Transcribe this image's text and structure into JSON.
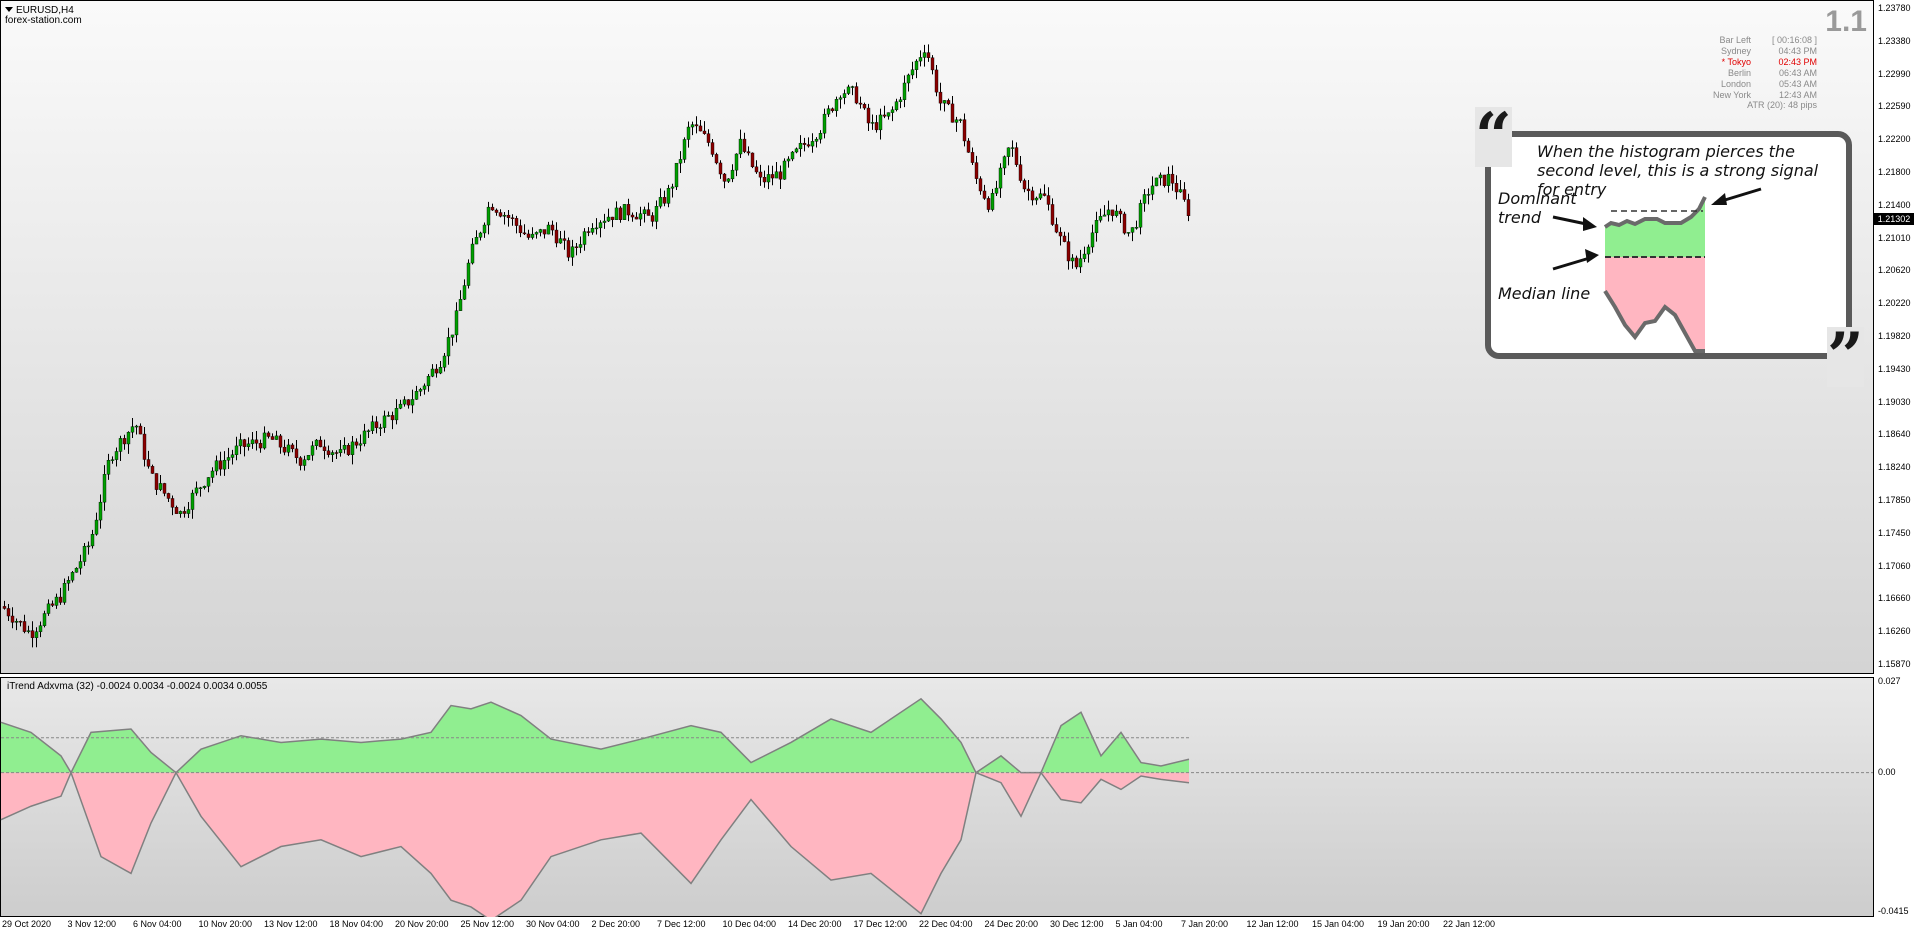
{
  "chart": {
    "symbol": "EURUSD,H4",
    "watermark": "forex-station.com",
    "version": "1.1",
    "current_price": "1.21302",
    "info": {
      "rows": [
        {
          "label": "Bar Left",
          "value": "[ 00:16:08 ]",
          "active": false
        },
        {
          "label": "Sydney",
          "value": "04:43 PM",
          "active": false
        },
        {
          "label": "* Tokyo",
          "value": "02:43 PM",
          "active": true
        },
        {
          "label": "Berlin",
          "value": "06:43 AM",
          "active": false
        },
        {
          "label": "London",
          "value": "05:43 AM",
          "active": false
        },
        {
          "label": "New York",
          "value": "12:43 AM",
          "active": false
        }
      ],
      "atr": "ATR (20): 48 pips"
    },
    "colors": {
      "bull": "#00a000",
      "bear": "#8b0000",
      "hist_up": "#90ee90",
      "hist_down": "#ffb6c1",
      "line": "#808080"
    }
  },
  "indicator": {
    "title": "iTrend Adxvma (32) -0.0024 0.0034 -0.0024 0.0034 0.0055"
  },
  "callout": {
    "text": "When the histogram pierces the second level, this is a strong signal for entry",
    "dominant": "Dominant trend",
    "median": "Median line",
    "open_quote": "“",
    "close_quote": "”"
  },
  "chart_data": {
    "type": "candlestick",
    "price_axis": [
      "1.23780",
      "1.23380",
      "1.22990",
      "1.22590",
      "1.22200",
      "1.21800",
      "1.21400",
      "1.21010",
      "1.20620",
      "1.20220",
      "1.19820",
      "1.19430",
      "1.19030",
      "1.18640",
      "1.18240",
      "1.17850",
      "1.17450",
      "1.17060",
      "1.16660",
      "1.16260",
      "1.15870"
    ],
    "indicator_axis": [
      "0.027",
      "0.00",
      "-0.0415"
    ],
    "time_axis": [
      "29 Oct 2020",
      "3 Nov 12:00",
      "6 Nov 04:00",
      "10 Nov 20:00",
      "13 Nov 12:00",
      "18 Nov 04:00",
      "20 Nov 20:00",
      "25 Nov 12:00",
      "30 Nov 04:00",
      "2 Dec 20:00",
      "7 Dec 12:00",
      "10 Dec 04:00",
      "14 Dec 20:00",
      "17 Dec 12:00",
      "22 Dec 04:00",
      "24 Dec 20:00",
      "30 Dec 12:00",
      "5 Jan 04:00",
      "7 Jan 20:00",
      "12 Jan 12:00",
      "15 Jan 04:00",
      "19 Jan 20:00",
      "22 Jan 12:00"
    ],
    "price_range": [
      1.1587,
      1.2378
    ],
    "indicator_range": [
      -0.0415,
      0.027
    ],
    "price_path": [
      [
        0,
        1.166
      ],
      [
        30,
        1.1625
      ],
      [
        60,
        1.167
      ],
      [
        90,
        1.1735
      ],
      [
        110,
        1.184
      ],
      [
        135,
        1.188
      ],
      [
        150,
        1.1815
      ],
      [
        180,
        1.177
      ],
      [
        210,
        1.182
      ],
      [
        240,
        1.185
      ],
      [
        270,
        1.186
      ],
      [
        300,
        1.1835
      ],
      [
        320,
        1.1855
      ],
      [
        340,
        1.184
      ],
      [
        360,
        1.186
      ],
      [
        380,
        1.188
      ],
      [
        400,
        1.1895
      ],
      [
        420,
        1.192
      ],
      [
        440,
        1.1955
      ],
      [
        455,
        1.2
      ],
      [
        470,
        1.208
      ],
      [
        490,
        1.2145
      ],
      [
        510,
        1.2125
      ],
      [
        530,
        1.21
      ],
      [
        550,
        1.2115
      ],
      [
        570,
        1.208
      ],
      [
        590,
        1.212
      ],
      [
        610,
        1.213
      ],
      [
        630,
        1.2135
      ],
      [
        650,
        1.2125
      ],
      [
        670,
        1.216
      ],
      [
        690,
        1.224
      ],
      [
        710,
        1.2215
      ],
      [
        725,
        1.217
      ],
      [
        740,
        1.2215
      ],
      [
        760,
        1.217
      ],
      [
        780,
        1.218
      ],
      [
        800,
        1.221
      ],
      [
        820,
        1.2235
      ],
      [
        840,
        1.228
      ],
      [
        855,
        1.2275
      ],
      [
        870,
        1.2235
      ],
      [
        890,
        1.225
      ],
      [
        910,
        1.23
      ],
      [
        925,
        1.2335
      ],
      [
        940,
        1.2265
      ],
      [
        960,
        1.224
      ],
      [
        975,
        1.2175
      ],
      [
        990,
        1.214
      ],
      [
        1010,
        1.2215
      ],
      [
        1025,
        1.216
      ],
      [
        1045,
        1.215
      ],
      [
        1060,
        1.21
      ],
      [
        1075,
        1.2065
      ],
      [
        1090,
        1.2105
      ],
      [
        1110,
        1.214
      ],
      [
        1130,
        1.2105
      ],
      [
        1150,
        1.2165
      ],
      [
        1170,
        1.2175
      ],
      [
        1188,
        1.2135
      ]
    ],
    "indicator_path": [
      [
        0,
        0.015
      ],
      [
        30,
        0.012
      ],
      [
        60,
        0.005
      ],
      [
        70,
        0.0
      ],
      [
        90,
        0.012
      ],
      [
        130,
        0.013
      ],
      [
        150,
        0.006
      ],
      [
        175,
        0.0
      ],
      [
        200,
        0.007
      ],
      [
        240,
        0.011
      ],
      [
        280,
        0.009
      ],
      [
        320,
        0.01
      ],
      [
        360,
        0.009
      ],
      [
        400,
        0.01
      ],
      [
        430,
        0.012
      ],
      [
        450,
        0.02
      ],
      [
        470,
        0.019
      ],
      [
        490,
        0.021
      ],
      [
        520,
        0.017
      ],
      [
        550,
        0.01
      ],
      [
        600,
        0.007
      ],
      [
        640,
        0.01
      ],
      [
        690,
        0.014
      ],
      [
        720,
        0.012
      ],
      [
        750,
        0.003
      ],
      [
        790,
        0.009
      ],
      [
        830,
        0.016
      ],
      [
        870,
        0.012
      ],
      [
        920,
        0.022
      ],
      [
        940,
        0.016
      ],
      [
        960,
        0.009
      ],
      [
        975,
        0.0
      ],
      [
        1000,
        0.005
      ],
      [
        1020,
        0.0
      ],
      [
        1040,
        0.0
      ],
      [
        1060,
        0.014
      ],
      [
        1080,
        0.018
      ],
      [
        1100,
        0.005
      ],
      [
        1120,
        0.012
      ],
      [
        1140,
        0.003
      ],
      [
        1160,
        0.002
      ],
      [
        1188,
        0.004
      ]
    ],
    "indicator_path_neg": [
      [
        0,
        -0.014
      ],
      [
        30,
        -0.01
      ],
      [
        60,
        -0.007
      ],
      [
        70,
        0.0
      ],
      [
        100,
        -0.025
      ],
      [
        130,
        -0.03
      ],
      [
        150,
        -0.015
      ],
      [
        175,
        0.0
      ],
      [
        200,
        -0.013
      ],
      [
        240,
        -0.028
      ],
      [
        280,
        -0.022
      ],
      [
        320,
        -0.02
      ],
      [
        360,
        -0.025
      ],
      [
        400,
        -0.022
      ],
      [
        430,
        -0.03
      ],
      [
        450,
        -0.038
      ],
      [
        470,
        -0.04
      ],
      [
        490,
        -0.044
      ],
      [
        520,
        -0.038
      ],
      [
        550,
        -0.025
      ],
      [
        600,
        -0.02
      ],
      [
        640,
        -0.018
      ],
      [
        690,
        -0.033
      ],
      [
        720,
        -0.02
      ],
      [
        750,
        -0.008
      ],
      [
        790,
        -0.022
      ],
      [
        830,
        -0.032
      ],
      [
        870,
        -0.03
      ],
      [
        920,
        -0.042
      ],
      [
        940,
        -0.03
      ],
      [
        960,
        -0.02
      ],
      [
        975,
        0.0
      ],
      [
        1000,
        -0.003
      ],
      [
        1020,
        -0.013
      ],
      [
        1040,
        0.0
      ],
      [
        1060,
        -0.008
      ],
      [
        1080,
        -0.009
      ],
      [
        1100,
        -0.002
      ],
      [
        1120,
        -0.005
      ],
      [
        1140,
        -0.001
      ],
      [
        1160,
        -0.002
      ],
      [
        1188,
        -0.003
      ]
    ],
    "levels": {
      "second_level": 0.0104,
      "median": 0.0
    }
  }
}
